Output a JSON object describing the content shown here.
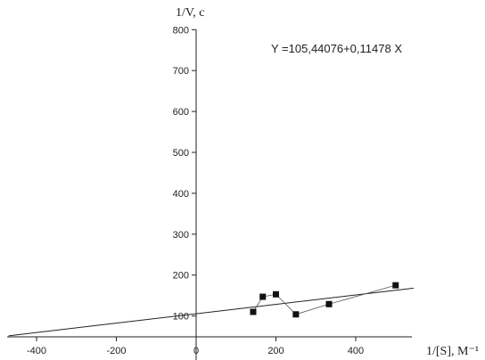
{
  "chart_data": {
    "type": "scatter",
    "title": "",
    "xlabel": "1/[S], M⁻¹",
    "ylabel": "1/V, c",
    "xlim": [
      -470,
      550
    ],
    "ylim": [
      50,
      800
    ],
    "x_ticks": [
      -400,
      -200,
      0,
      200,
      400
    ],
    "y_ticks": [
      100,
      200,
      300,
      400,
      500,
      600,
      700,
      800
    ],
    "grid": false,
    "annotation": "Y =105,44076+0,11478 X",
    "series": [
      {
        "points": [
          {
            "x": 143,
            "y": 110
          },
          {
            "x": 167,
            "y": 147
          },
          {
            "x": 200,
            "y": 153
          },
          {
            "x": 250,
            "y": 104
          },
          {
            "x": 333,
            "y": 129
          },
          {
            "x": 500,
            "y": 175
          }
        ]
      }
    ],
    "fit_line": {
      "intercept": 105.44076,
      "slope": 0.11478,
      "x_range": [
        -470,
        545
      ]
    },
    "colors": {
      "axis": "#222222",
      "marker": "#111111",
      "connector": "#555555",
      "fit": "#222222"
    }
  }
}
